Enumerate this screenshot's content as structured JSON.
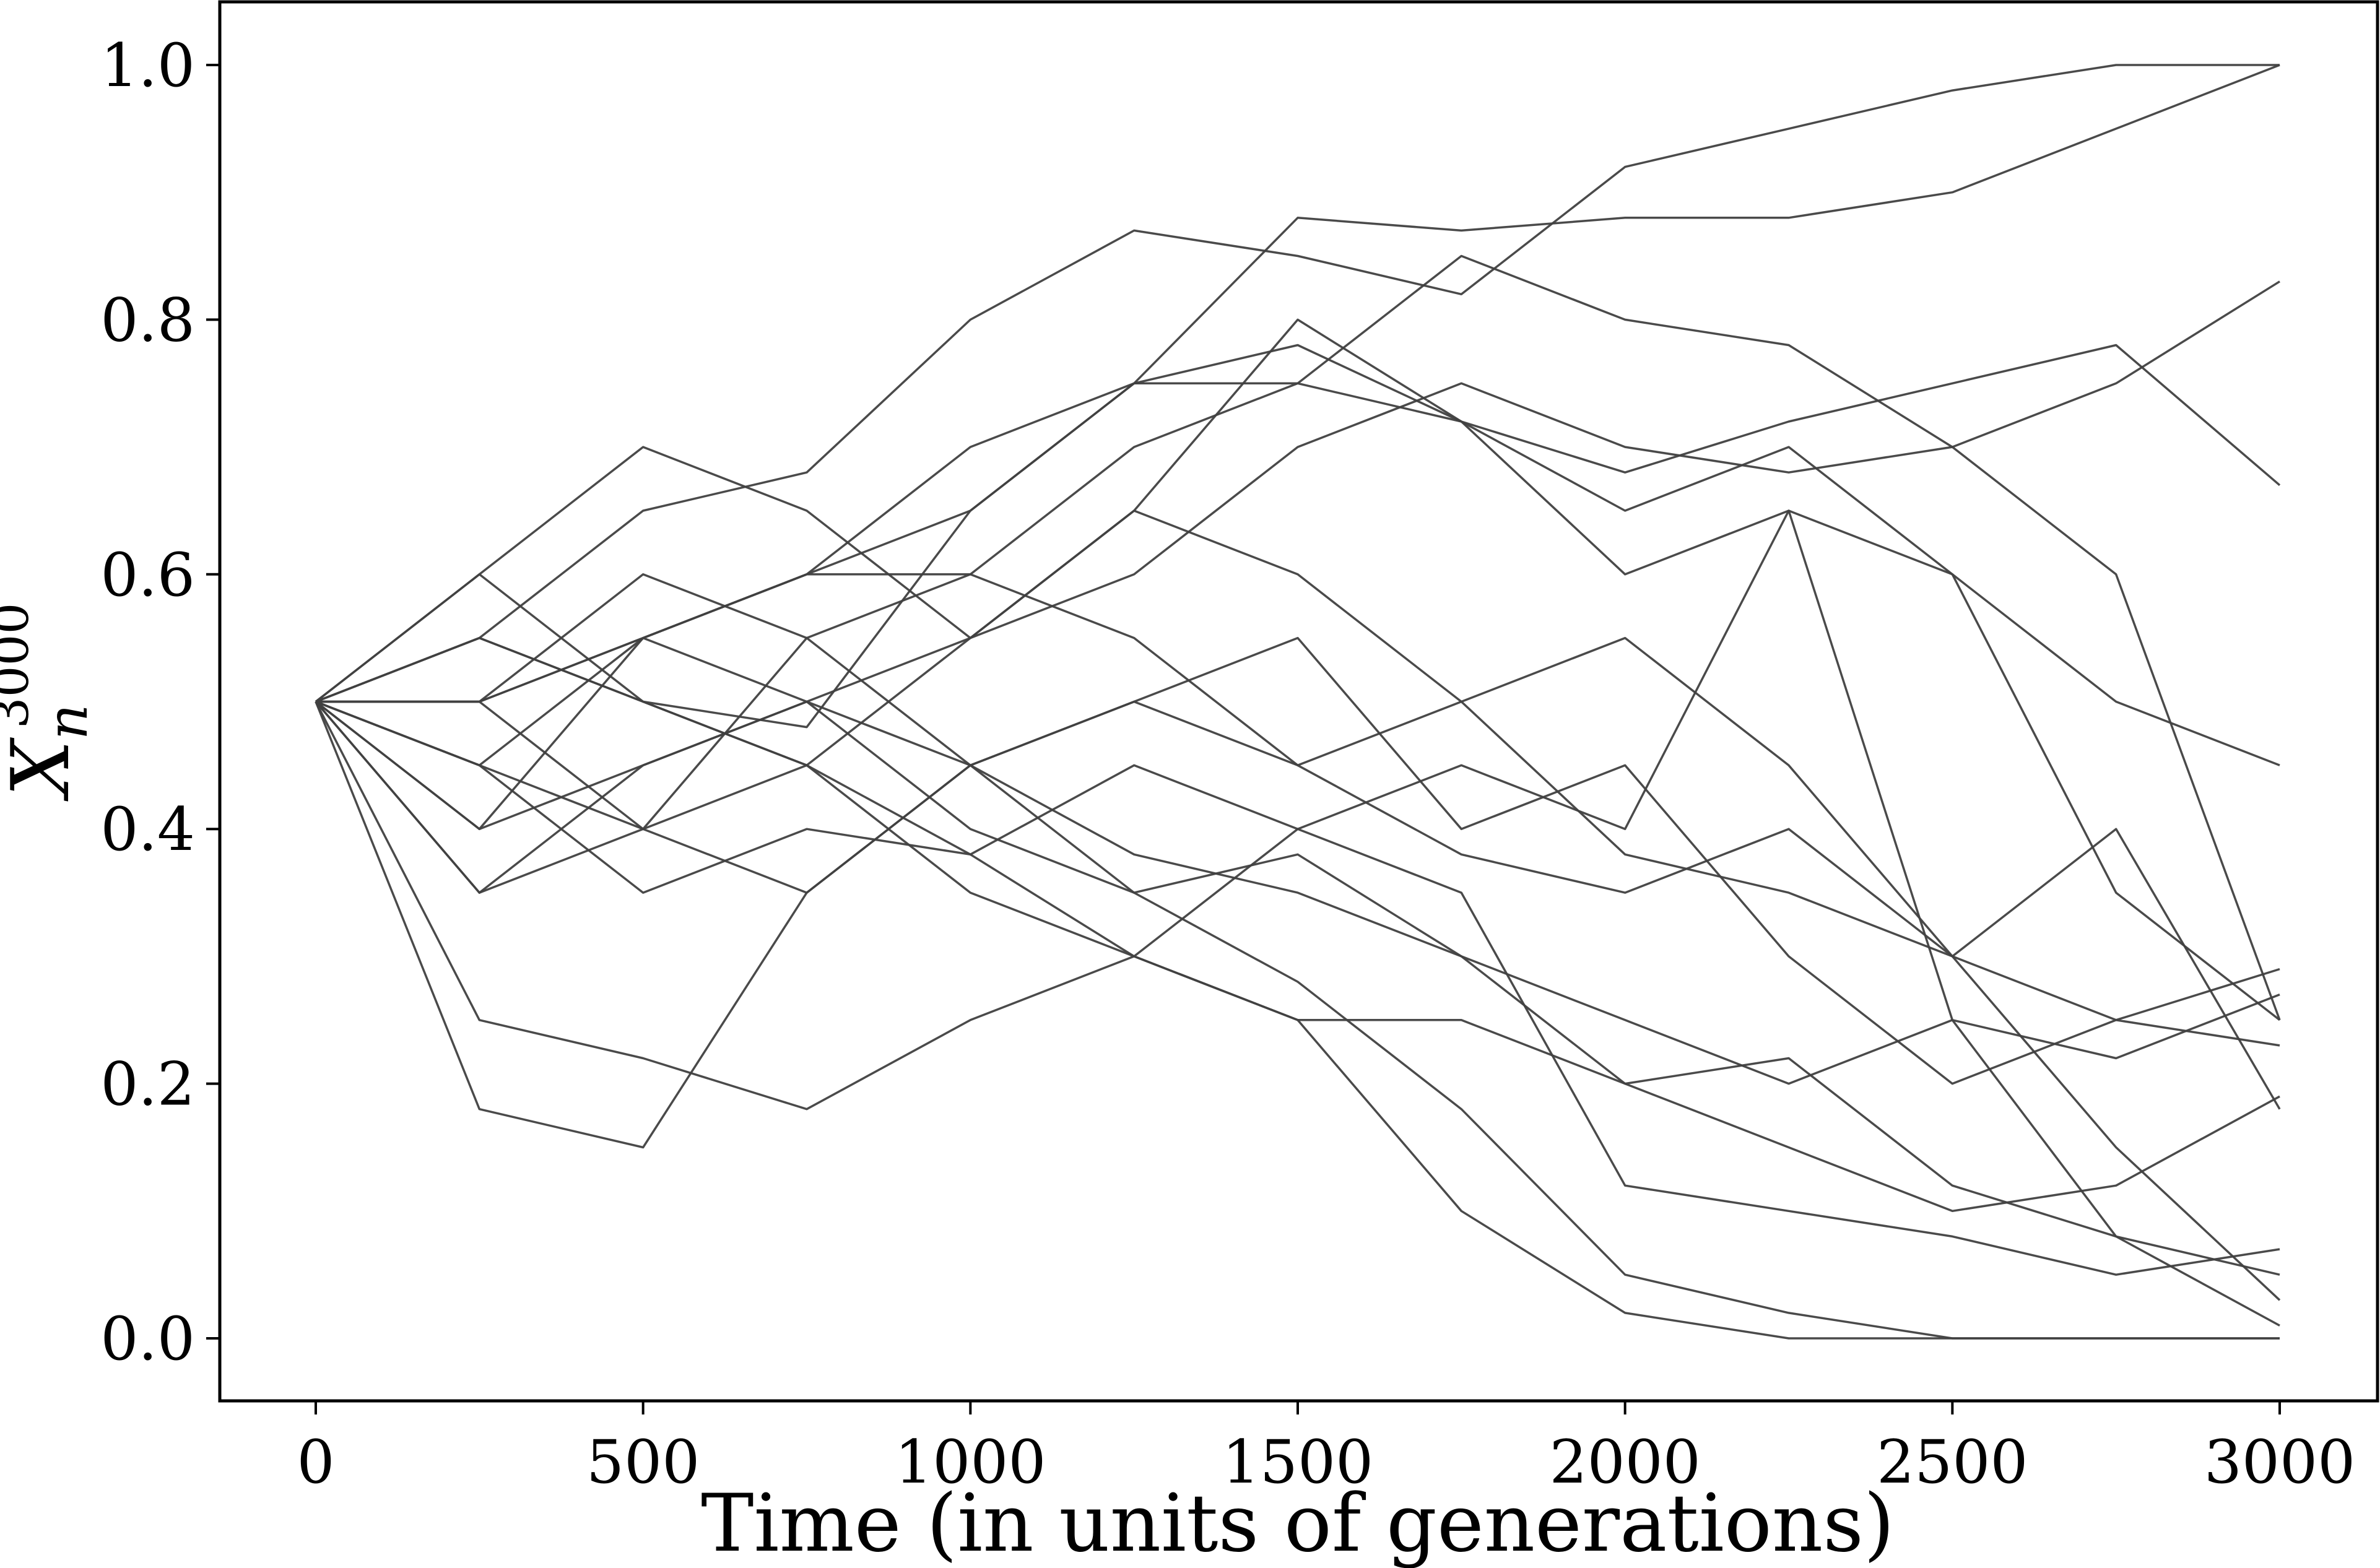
{
  "chart_data": {
    "type": "line",
    "xlabel": "Time (in units of generations)",
    "ylabel": {
      "base": "X",
      "sub": "n",
      "sup": "3000"
    },
    "xlim": [
      -150,
      3150
    ],
    "ylim": [
      -0.05,
      1.05
    ],
    "xticks": [
      "0",
      "500",
      "1000",
      "1500",
      "2000",
      "2500",
      "3000"
    ],
    "yticks": [
      "0.0",
      "0.2",
      "0.4",
      "0.6",
      "0.8",
      "1.0"
    ],
    "grid": false,
    "line_color": "#404040",
    "x": [
      0,
      250,
      500,
      750,
      1000,
      1250,
      1500,
      1750,
      2000,
      2250,
      2500,
      2750,
      3000
    ],
    "series": [
      {
        "values": [
          0.5,
          0.55,
          0.65,
          0.68,
          0.8,
          0.87,
          0.85,
          0.82,
          0.92,
          0.95,
          0.98,
          1.0,
          1.0
        ]
      },
      {
        "values": [
          0.5,
          0.45,
          0.55,
          0.6,
          0.65,
          0.75,
          0.88,
          0.87,
          0.88,
          0.88,
          0.9,
          0.95,
          1.0
        ]
      },
      {
        "values": [
          0.5,
          0.6,
          0.5,
          0.45,
          0.55,
          0.6,
          0.7,
          0.75,
          0.7,
          0.68,
          0.7,
          0.75,
          0.83
        ]
      },
      {
        "values": [
          0.5,
          0.5,
          0.55,
          0.6,
          0.6,
          0.7,
          0.75,
          0.72,
          0.68,
          0.72,
          0.75,
          0.78,
          0.67
        ]
      },
      {
        "values": [
          0.5,
          0.55,
          0.5,
          0.48,
          0.65,
          0.75,
          0.78,
          0.72,
          0.65,
          0.7,
          0.6,
          0.5,
          0.45
        ]
      },
      {
        "values": [
          0.5,
          0.25,
          0.22,
          0.18,
          0.25,
          0.3,
          0.25,
          0.1,
          0.02,
          0.0,
          0.0,
          0.0,
          0.0
        ]
      },
      {
        "values": [
          0.5,
          0.18,
          0.15,
          0.35,
          0.45,
          0.35,
          0.28,
          0.18,
          0.05,
          0.02,
          0.0,
          0.0,
          0.0
        ]
      },
      {
        "values": [
          0.5,
          0.35,
          0.4,
          0.55,
          0.6,
          0.55,
          0.45,
          0.38,
          0.35,
          0.4,
          0.3,
          0.25,
          0.29
        ]
      },
      {
        "values": [
          0.5,
          0.4,
          0.45,
          0.5,
          0.4,
          0.35,
          0.38,
          0.3,
          0.25,
          0.2,
          0.25,
          0.22,
          0.27
        ]
      },
      {
        "values": [
          0.5,
          0.45,
          0.4,
          0.45,
          0.38,
          0.45,
          0.4,
          0.45,
          0.4,
          0.65,
          0.6,
          0.35,
          0.25
        ]
      },
      {
        "values": [
          0.5,
          0.5,
          0.4,
          0.35,
          0.45,
          0.5,
          0.55,
          0.4,
          0.45,
          0.3,
          0.2,
          0.25,
          0.23
        ]
      },
      {
        "values": [
          0.5,
          0.55,
          0.5,
          0.45,
          0.35,
          0.3,
          0.25,
          0.25,
          0.2,
          0.15,
          0.1,
          0.12,
          0.19
        ]
      },
      {
        "values": [
          0.5,
          0.45,
          0.35,
          0.4,
          0.38,
          0.3,
          0.4,
          0.35,
          0.12,
          0.1,
          0.08,
          0.05,
          0.07
        ]
      },
      {
        "values": [
          0.5,
          0.5,
          0.55,
          0.5,
          0.45,
          0.38,
          0.35,
          0.3,
          0.2,
          0.22,
          0.12,
          0.08,
          0.05
        ]
      },
      {
        "values": [
          0.5,
          0.35,
          0.45,
          0.5,
          0.55,
          0.65,
          0.6,
          0.5,
          0.55,
          0.45,
          0.3,
          0.15,
          0.03
        ]
      },
      {
        "values": [
          0.5,
          0.6,
          0.7,
          0.65,
          0.55,
          0.65,
          0.8,
          0.72,
          0.6,
          0.65,
          0.25,
          0.08,
          0.01
        ]
      },
      {
        "values": [
          0.5,
          0.5,
          0.6,
          0.55,
          0.45,
          0.5,
          0.45,
          0.5,
          0.38,
          0.35,
          0.3,
          0.4,
          0.18
        ]
      },
      {
        "values": [
          0.5,
          0.4,
          0.55,
          0.6,
          0.7,
          0.75,
          0.75,
          0.85,
          0.8,
          0.78,
          0.7,
          0.6,
          0.25
        ]
      }
    ]
  }
}
